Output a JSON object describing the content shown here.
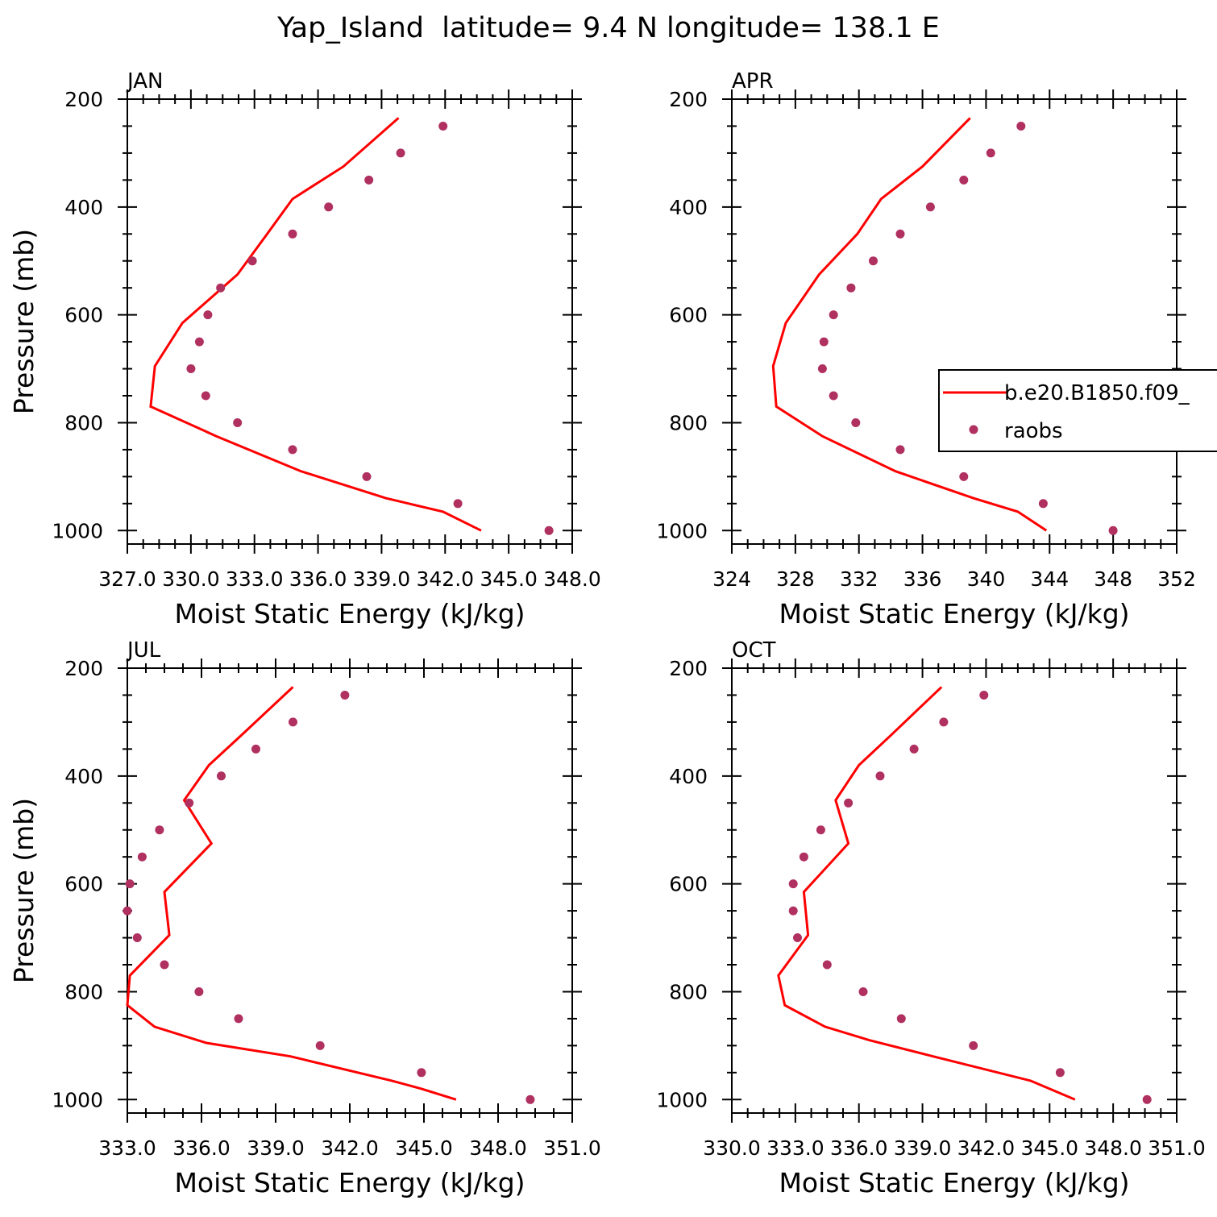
{
  "figure_title": "Yap_Island  latitude= 9.4 N longitude= 138.1 E",
  "colors": {
    "model_line": "#ff0000",
    "obs_marker": "#b03060",
    "axes": "#000000"
  },
  "legend": {
    "model_label": "b.e20.B1850.f09_",
    "obs_label": "raobs"
  },
  "chart_data": [
    {
      "type": "line",
      "panel": "JAN",
      "xlabel": "Moist Static Energy (kJ/kg)",
      "ylabel": "Pressure (mb)",
      "xlim": [
        327.0,
        348.0
      ],
      "ylim": [
        200,
        1025
      ],
      "y_inverted": true,
      "xticks": [
        327.0,
        330.0,
        333.0,
        336.0,
        339.0,
        342.0,
        345.0,
        348.0
      ],
      "xtick_labels": [
        "327.0",
        "330.0",
        "333.0",
        "336.0",
        "339.0",
        "342.0",
        "345.0",
        "348.0"
      ],
      "yticks": [
        200,
        400,
        600,
        800,
        1000
      ],
      "ytick_labels": [
        "200",
        "400",
        "600",
        "800",
        "1000"
      ],
      "series": [
        {
          "name": "b.e20.B1850.f09_",
          "style": "line",
          "x": [
            339.8,
            337.2,
            334.8,
            333.6,
            332.2,
            329.6,
            328.3,
            328.1,
            331.2,
            335.2,
            339.2,
            341.9,
            343.7
          ],
          "y": [
            235,
            325,
            385,
            450,
            525,
            615,
            695,
            770,
            825,
            890,
            940,
            965,
            1000
          ]
        },
        {
          "name": "raobs",
          "style": "markers",
          "x": [
            341.9,
            339.9,
            338.4,
            336.5,
            334.8,
            332.9,
            331.4,
            330.8,
            330.4,
            330.0,
            330.7,
            332.2,
            334.8,
            338.3,
            342.6,
            346.9
          ],
          "y": [
            250,
            300,
            350,
            400,
            450,
            500,
            550,
            600,
            650,
            700,
            750,
            800,
            850,
            900,
            950,
            1000
          ]
        }
      ]
    },
    {
      "type": "line",
      "panel": "APR",
      "xlabel": "Moist Static Energy (kJ/kg)",
      "ylabel": "Pressure (mb)",
      "xlim": [
        324,
        352
      ],
      "ylim": [
        200,
        1025
      ],
      "y_inverted": true,
      "xticks": [
        324,
        328,
        332,
        336,
        340,
        344,
        348,
        352
      ],
      "xtick_labels": [
        "324",
        "328",
        "332",
        "336",
        "340",
        "344",
        "348",
        "352"
      ],
      "yticks": [
        200,
        400,
        600,
        800,
        1000
      ],
      "ytick_labels": [
        "200",
        "400",
        "600",
        "800",
        "1000"
      ],
      "series": [
        {
          "name": "b.e20.B1850.f09_",
          "style": "line",
          "x": [
            339.0,
            336.0,
            333.4,
            331.9,
            329.5,
            327.4,
            326.6,
            326.8,
            329.7,
            334.3,
            339.2,
            342.0,
            343.8
          ],
          "y": [
            235,
            325,
            385,
            450,
            525,
            615,
            695,
            770,
            825,
            890,
            940,
            965,
            1000
          ]
        },
        {
          "name": "raobs",
          "style": "markers",
          "x": [
            342.2,
            340.3,
            338.6,
            336.5,
            334.6,
            332.9,
            331.5,
            330.4,
            329.8,
            329.7,
            330.4,
            331.8,
            334.6,
            338.6,
            343.6,
            348.0
          ],
          "y": [
            250,
            300,
            350,
            400,
            450,
            500,
            550,
            600,
            650,
            700,
            750,
            800,
            850,
            900,
            950,
            1000
          ]
        }
      ]
    },
    {
      "type": "line",
      "panel": "JUL",
      "xlabel": "Moist Static Energy (kJ/kg)",
      "ylabel": "Pressure (mb)",
      "xlim": [
        333.0,
        351.0
      ],
      "ylim": [
        200,
        1025
      ],
      "y_inverted": true,
      "xticks": [
        333.0,
        336.0,
        339.0,
        342.0,
        345.0,
        348.0,
        351.0
      ],
      "xtick_labels": [
        "333.0",
        "336.0",
        "339.0",
        "342.0",
        "345.0",
        "348.0",
        "351.0"
      ],
      "yticks": [
        200,
        400,
        600,
        800,
        1000
      ],
      "ytick_labels": [
        "200",
        "400",
        "600",
        "800",
        "1000"
      ],
      "series": [
        {
          "name": "b.e20.B1850.f09_",
          "style": "line",
          "x": [
            339.7,
            337.6,
            336.3,
            335.3,
            336.4,
            334.5,
            334.7,
            333.1,
            333.0,
            334.1,
            336.2,
            339.6,
            343.7,
            344.9,
            346.3
          ],
          "y": [
            235,
            325,
            380,
            445,
            525,
            615,
            695,
            770,
            825,
            865,
            895,
            920,
            965,
            980,
            1000
          ]
        },
        {
          "name": "raobs",
          "style": "markers",
          "x": [
            341.8,
            339.7,
            338.2,
            336.8,
            335.5,
            334.3,
            333.6,
            333.1,
            333.0,
            333.4,
            334.5,
            335.9,
            337.5,
            340.8,
            344.9,
            349.3
          ],
          "y": [
            250,
            300,
            350,
            400,
            450,
            500,
            550,
            600,
            650,
            700,
            750,
            800,
            850,
            900,
            950,
            1000
          ]
        }
      ]
    },
    {
      "type": "line",
      "panel": "OCT",
      "xlabel": "Moist Static Energy (kJ/kg)",
      "ylabel": "Pressure (mb)",
      "xlim": [
        330.0,
        351.0
      ],
      "ylim": [
        200,
        1025
      ],
      "y_inverted": true,
      "xticks": [
        330.0,
        333.0,
        336.0,
        339.0,
        342.0,
        345.0,
        348.0,
        351.0
      ],
      "xtick_labels": [
        "330.0",
        "333.0",
        "336.0",
        "339.0",
        "342.0",
        "345.0",
        "348.0",
        "351.0"
      ],
      "yticks": [
        200,
        400,
        600,
        800,
        1000
      ],
      "ytick_labels": [
        "200",
        "400",
        "600",
        "800",
        "1000"
      ],
      "series": [
        {
          "name": "b.e20.B1850.f09_",
          "style": "line",
          "x": [
            339.9,
            337.5,
            336.0,
            334.9,
            335.5,
            333.4,
            333.6,
            332.2,
            332.5,
            334.4,
            336.5,
            339.5,
            344.1,
            346.2
          ],
          "y": [
            235,
            325,
            380,
            445,
            525,
            615,
            695,
            770,
            825,
            865,
            890,
            920,
            965,
            1000
          ]
        },
        {
          "name": "raobs",
          "style": "markers",
          "x": [
            341.9,
            340.0,
            338.6,
            337.0,
            335.5,
            334.2,
            333.4,
            332.9,
            332.9,
            333.1,
            334.5,
            336.2,
            338.0,
            341.4,
            345.5,
            349.6
          ],
          "y": [
            250,
            300,
            350,
            400,
            450,
            500,
            550,
            600,
            650,
            700,
            750,
            800,
            850,
            900,
            950,
            1000
          ]
        }
      ]
    }
  ]
}
